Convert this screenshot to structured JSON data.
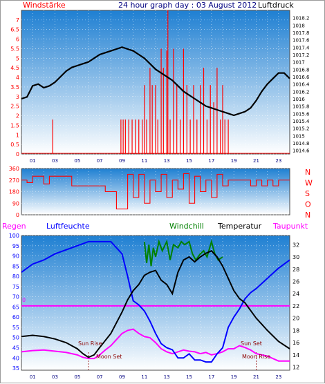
{
  "colors": {
    "red": "#ff0000",
    "darkred": "#8b0000",
    "navy": "#000080",
    "blue": "#0000ff",
    "green": "#008000",
    "magenta": "#ff00ff",
    "black": "#000000",
    "bg_top": "#1e7fd2",
    "bg_bottom": "#ffffff"
  },
  "header": {
    "title": "24 hour graph day : 03 August 2012",
    "left_label": "Windstärke",
    "right_label": "Luftdruck"
  },
  "bottom_labels": {
    "regen": "Regen",
    "luftfeuchte": "Luftfeuchte",
    "windchill": "Windchill",
    "temperatur": "Temperatur",
    "taupunkt": "Taupunkt",
    "rain_marker": "0"
  },
  "events": {
    "sun_rise": "Sun Rise",
    "sun_set": "Sun Set",
    "moon_set": "Moon Set",
    "moon_rise": "Moon Rise"
  },
  "chart_data": [
    {
      "type": "line",
      "name": "wind-pressure",
      "xlim": [
        0,
        24
      ],
      "x_ticks": [
        "01",
        "03",
        "05",
        "07",
        "09",
        "11",
        "13",
        "15",
        "17",
        "19",
        "21",
        "23"
      ],
      "left_axis": {
        "title": "Windstärke",
        "ylim": [
          0,
          7.5
        ],
        "ticks": [
          "0",
          "0.5",
          "1",
          "1.5",
          "2",
          "2.5",
          "3",
          "3.5",
          "4",
          "4.5",
          "5",
          "5.5",
          "6",
          "6.5",
          "7"
        ]
      },
      "right_axis": {
        "title": "Luftdruck",
        "ylim": [
          1014.5,
          1018.4
        ],
        "ticks": [
          "1014.6",
          "1014.8",
          "1015",
          "1015.2",
          "1015.4",
          "1015.6",
          "1015.8",
          "1016",
          "1016.2",
          "1016.4",
          "1016.6",
          "1016.8",
          "1017",
          "1017.2",
          "1017.4",
          "1017.6",
          "1017.8",
          "1018",
          "1018.2"
        ]
      },
      "series": [
        {
          "name": "Luftdruck",
          "axis": "right",
          "color": "#000000",
          "x": [
            0.0,
            0.5,
            1.0,
            1.5,
            2.0,
            2.5,
            3.0,
            3.5,
            4.0,
            4.5,
            5.0,
            5.5,
            6.0,
            6.5,
            7.0,
            7.5,
            8.0,
            8.5,
            9.0,
            9.5,
            10.0,
            10.5,
            11.0,
            11.5,
            12.0,
            12.5,
            13.0,
            13.5,
            14.0,
            14.5,
            15.0,
            15.5,
            16.0,
            16.5,
            17.0,
            17.5,
            18.0,
            18.5,
            19.0,
            19.5,
            20.0,
            20.5,
            21.0,
            21.5,
            22.0,
            22.5,
            23.0,
            23.5,
            24.0
          ],
          "y": [
            1016.0,
            1016.05,
            1016.35,
            1016.4,
            1016.3,
            1016.35,
            1016.45,
            1016.6,
            1016.75,
            1016.85,
            1016.9,
            1016.95,
            1017.0,
            1017.1,
            1017.2,
            1017.25,
            1017.3,
            1017.35,
            1017.4,
            1017.35,
            1017.3,
            1017.2,
            1017.1,
            1016.95,
            1016.8,
            1016.7,
            1016.6,
            1016.5,
            1016.35,
            1016.2,
            1016.1,
            1016.0,
            1015.9,
            1015.8,
            1015.75,
            1015.7,
            1015.65,
            1015.6,
            1015.55,
            1015.6,
            1015.65,
            1015.75,
            1015.95,
            1016.2,
            1016.4,
            1016.55,
            1016.7,
            1016.7,
            1016.55
          ]
        },
        {
          "name": "Windstärke",
          "axis": "left",
          "color": "#ff0000",
          "style": "impulses",
          "x": [
            2.8,
            8.9,
            9.1,
            9.3,
            9.6,
            9.9,
            10.2,
            10.5,
            10.8,
            11.0,
            11.2,
            11.5,
            11.7,
            12.0,
            12.2,
            12.5,
            12.7,
            13.0,
            13.1,
            13.3,
            13.6,
            13.9,
            14.2,
            14.5,
            14.8,
            15.1,
            15.4,
            15.7,
            16.0,
            16.3,
            16.6,
            16.9,
            17.2,
            17.5,
            17.8,
            18.0,
            18.2,
            18.5
          ],
          "y": [
            1.8,
            1.8,
            1.8,
            1.8,
            1.8,
            1.8,
            1.8,
            1.8,
            1.8,
            3.6,
            1.8,
            4.5,
            3.6,
            3.6,
            1.8,
            5.5,
            4.5,
            5.4,
            7.5,
            1.8,
            5.5,
            3.6,
            1.8,
            5.5,
            3.6,
            1.8,
            3.6,
            1.8,
            3.6,
            4.5,
            1.8,
            3.6,
            2.7,
            4.5,
            1.8,
            3.6,
            1.8,
            1.8
          ]
        }
      ]
    },
    {
      "type": "scatter",
      "name": "wind-direction",
      "xlim": [
        0,
        24
      ],
      "left_axis": {
        "ylim": [
          0,
          360
        ],
        "ticks": [
          "0",
          "90",
          "180",
          "270",
          "360"
        ]
      },
      "right_axis": {
        "letters": [
          "N",
          "W",
          "S",
          "O",
          "N"
        ]
      },
      "series": [
        {
          "name": "Windrichtung",
          "color": "#ff0000",
          "x": [
            0.0,
            0.5,
            1.0,
            1.5,
            2.0,
            2.5,
            3.0,
            3.5,
            4.0,
            4.5,
            5.0,
            5.5,
            6.0,
            6.5,
            7.0,
            7.5,
            8.0,
            8.5,
            9.0,
            9.5,
            10.0,
            10.5,
            11.0,
            11.5,
            12.0,
            12.5,
            13.0,
            13.5,
            14.0,
            14.5,
            15.0,
            15.5,
            16.0,
            16.5,
            17.0,
            17.5,
            18.0,
            18.5,
            19.0,
            19.5,
            20.0,
            20.5,
            21.0,
            21.5,
            22.0,
            22.5,
            23.0,
            23.5,
            24.0
          ],
          "y": [
            270,
            250,
            300,
            300,
            240,
            300,
            300,
            300,
            300,
            225,
            225,
            225,
            225,
            225,
            225,
            180,
            180,
            45,
            45,
            315,
            135,
            315,
            90,
            270,
            180,
            315,
            135,
            270,
            200,
            320,
            90,
            300,
            180,
            270,
            135,
            315,
            225,
            270,
            270,
            270,
            270,
            225,
            270,
            225,
            270,
            225,
            270,
            270,
            270
          ]
        }
      ]
    },
    {
      "type": "line",
      "name": "humidity-temperature",
      "xlim": [
        0,
        24
      ],
      "left_axis": {
        "title": "Luftfeuchte",
        "ylim": [
          34,
          100
        ],
        "ticks": [
          "35",
          "40",
          "45",
          "50",
          "55",
          "60",
          "65",
          "70",
          "75",
          "80",
          "85",
          "90",
          "95",
          "100"
        ]
      },
      "right_axis": {
        "title": "Temperatur",
        "ylim": [
          11.5,
          33.5
        ],
        "ticks": [
          "12",
          "14",
          "16",
          "18",
          "20",
          "22",
          "24",
          "26",
          "28",
          "30",
          "32"
        ]
      },
      "rain_level": 0,
      "series": [
        {
          "name": "Luftfeuchte",
          "axis": "left",
          "color": "#0000ff",
          "x": [
            0.0,
            1.0,
            2.0,
            3.0,
            4.0,
            5.0,
            6.0,
            7.0,
            8.0,
            9.0,
            9.5,
            10.0,
            10.5,
            11.0,
            11.5,
            12.0,
            12.5,
            13.0,
            13.5,
            14.0,
            14.5,
            15.0,
            15.5,
            16.0,
            16.5,
            17.0,
            17.5,
            18.0,
            18.5,
            19.0,
            19.5,
            20.0,
            20.5,
            21.0,
            22.0,
            23.0,
            24.0
          ],
          "y": [
            82,
            86,
            88,
            91,
            93,
            95,
            97,
            97,
            97,
            91,
            80,
            68,
            66,
            63,
            58,
            52,
            47,
            45,
            44,
            40,
            40,
            42,
            39,
            39,
            38,
            38,
            42,
            45,
            55,
            60,
            64,
            69,
            72,
            74,
            79,
            84,
            88
          ]
        },
        {
          "name": "Temperatur",
          "axis": "right",
          "color": "#000000",
          "x": [
            0.0,
            1.0,
            2.0,
            3.0,
            4.0,
            5.0,
            5.5,
            6.0,
            6.5,
            7.0,
            8.0,
            9.0,
            9.5,
            10.0,
            10.5,
            11.0,
            11.5,
            12.0,
            12.5,
            13.0,
            13.5,
            14.0,
            14.5,
            15.0,
            15.5,
            16.0,
            16.5,
            17.0,
            17.5,
            18.0,
            18.5,
            19.0,
            19.5,
            20.0,
            21.0,
            22.0,
            23.0,
            24.0
          ],
          "y": [
            17.0,
            17.2,
            17.0,
            16.6,
            16.0,
            15.0,
            14.2,
            13.6,
            14.0,
            15.2,
            17.5,
            21.0,
            23.0,
            24.5,
            25.5,
            27.0,
            27.5,
            27.8,
            26.2,
            25.5,
            24.0,
            27.5,
            29.5,
            30.0,
            29.2,
            30.0,
            30.6,
            31.0,
            30.0,
            28.5,
            26.5,
            24.5,
            23.2,
            22.5,
            20.0,
            18.0,
            16.2,
            15.0
          ]
        },
        {
          "name": "Windchill",
          "axis": "right",
          "color": "#008000",
          "x": [
            11.0,
            11.2,
            11.4,
            11.6,
            11.8,
            12.0,
            12.3,
            12.6,
            13.0,
            13.3,
            13.6,
            14.0,
            14.3,
            14.6,
            15.0,
            15.3,
            15.6,
            16.0,
            16.3,
            16.6,
            17.0,
            17.3,
            17.6,
            18.0
          ],
          "y": [
            32.5,
            29.0,
            32.0,
            28.5,
            31.5,
            30.0,
            32.5,
            31.0,
            32.5,
            29.5,
            32.0,
            31.5,
            32.5,
            32.0,
            32.5,
            30.5,
            29.5,
            30.5,
            31.0,
            30.0,
            32.5,
            30.5,
            29.5,
            30.0
          ]
        },
        {
          "name": "Taupunkt",
          "axis": "right",
          "color": "#ff00ff",
          "x": [
            0.0,
            1.0,
            2.0,
            3.0,
            4.0,
            5.0,
            5.5,
            6.0,
            6.5,
            7.0,
            7.5,
            8.0,
            8.5,
            9.0,
            9.5,
            10.0,
            10.5,
            11.0,
            11.5,
            12.0,
            12.5,
            13.0,
            13.5,
            14.0,
            14.5,
            15.0,
            15.5,
            16.0,
            16.5,
            17.0,
            17.5,
            18.0,
            18.5,
            19.0,
            19.5,
            20.0,
            20.5,
            21.0,
            22.0,
            23.0,
            24.0
          ],
          "y": [
            14.5,
            14.7,
            14.8,
            14.6,
            14.4,
            14.0,
            13.6,
            13.4,
            13.4,
            14.0,
            14.8,
            15.5,
            16.5,
            17.5,
            18.0,
            18.2,
            17.5,
            17.0,
            16.8,
            16.0,
            15.0,
            14.5,
            14.2,
            14.5,
            14.8,
            14.6,
            14.5,
            14.2,
            14.4,
            14.0,
            14.2,
            14.5,
            15.0,
            15.0,
            15.5,
            15.2,
            14.8,
            14.2,
            13.8,
            13.0,
            13.0
          ]
        }
      ]
    }
  ]
}
